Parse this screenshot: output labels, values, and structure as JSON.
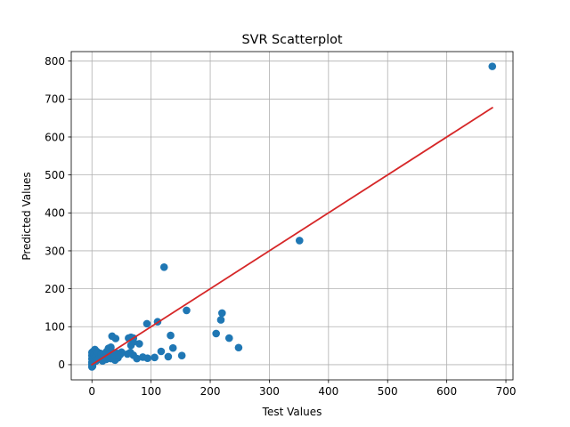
{
  "chart_data": {
    "type": "scatter",
    "title": "SVR Scatterplot",
    "xlabel": "Test Values",
    "ylabel": "Predicted Values",
    "xlim": [
      -35,
      712
    ],
    "ylim": [
      -40,
      825
    ],
    "xticks": [
      0,
      100,
      200,
      300,
      400,
      500,
      600,
      700
    ],
    "yticks": [
      0,
      100,
      200,
      300,
      400,
      500,
      600,
      700,
      800
    ],
    "grid": true,
    "colors": {
      "points": "#1f77b4",
      "line": "#d62728",
      "grid": "#b0b0b0"
    },
    "points": [
      [
        677,
        786
      ],
      [
        351,
        327
      ],
      [
        122,
        257
      ],
      [
        160,
        143
      ],
      [
        220,
        136
      ],
      [
        218,
        118
      ],
      [
        111,
        113
      ],
      [
        93,
        108
      ],
      [
        210,
        82
      ],
      [
        232,
        70
      ],
      [
        248,
        45
      ],
      [
        152,
        24
      ],
      [
        133,
        77
      ],
      [
        137,
        44
      ],
      [
        117,
        35
      ],
      [
        129,
        21
      ],
      [
        106,
        19
      ],
      [
        94,
        17
      ],
      [
        86,
        20
      ],
      [
        76,
        16
      ],
      [
        80,
        55
      ],
      [
        70,
        70
      ],
      [
        66,
        72
      ],
      [
        62,
        70
      ],
      [
        65,
        32
      ],
      [
        70,
        25
      ],
      [
        60,
        28
      ],
      [
        66,
        51
      ],
      [
        70,
        60
      ],
      [
        40,
        69
      ],
      [
        34,
        75
      ],
      [
        32,
        46
      ],
      [
        28,
        43
      ],
      [
        25,
        35
      ],
      [
        42,
        30
      ],
      [
        44,
        18
      ],
      [
        39,
        12
      ],
      [
        48,
        27
      ],
      [
        50,
        33
      ],
      [
        35,
        22
      ],
      [
        30,
        24
      ],
      [
        22,
        30
      ],
      [
        20,
        27
      ],
      [
        18,
        22
      ],
      [
        15,
        18
      ],
      [
        14,
        30
      ],
      [
        12,
        25
      ],
      [
        10,
        20
      ],
      [
        9,
        15
      ],
      [
        8,
        35
      ],
      [
        7,
        10
      ],
      [
        6,
        28
      ],
      [
        5,
        40
      ],
      [
        5,
        14
      ],
      [
        4,
        8
      ],
      [
        3,
        22
      ],
      [
        3,
        18
      ],
      [
        2,
        5
      ],
      [
        2,
        12
      ],
      [
        1,
        -4
      ],
      [
        1,
        2
      ],
      [
        1,
        8
      ],
      [
        0,
        -6
      ],
      [
        0,
        0
      ],
      [
        0,
        6
      ],
      [
        0,
        15
      ],
      [
        0,
        24
      ],
      [
        0,
        32
      ],
      [
        2,
        35
      ],
      [
        4,
        26
      ],
      [
        6,
        20
      ],
      [
        8,
        12
      ],
      [
        10,
        32
      ],
      [
        12,
        16
      ],
      [
        16,
        28
      ],
      [
        18,
        10
      ],
      [
        22,
        18
      ],
      [
        24,
        14
      ],
      [
        26,
        26
      ],
      [
        28,
        22
      ],
      [
        30,
        30
      ],
      [
        32,
        16
      ],
      [
        36,
        32
      ],
      [
        38,
        26
      ],
      [
        45,
        25
      ]
    ],
    "line": {
      "x": [
        0,
        677
      ],
      "y": [
        0,
        677
      ]
    }
  }
}
